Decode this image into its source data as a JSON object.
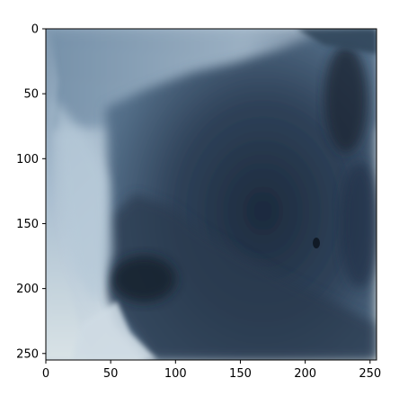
{
  "chart_data": {
    "type": "image",
    "title": "",
    "xlabel": "",
    "ylabel": "",
    "xlim": [
      0,
      255
    ],
    "ylim": [
      255,
      0
    ],
    "x_ticks": [
      0,
      50,
      100,
      150,
      200,
      250
    ],
    "y_ticks": [
      0,
      50,
      100,
      150,
      200,
      250
    ],
    "grid": false,
    "image_content": "photographic image of dark blue-grey clouds against a pale sky"
  },
  "colors": {
    "sky_light": "#dce6ec",
    "sky_mid": "#9fb6c9",
    "cloud_dark": "#1e2c40",
    "cloud_mid": "#3a4d63",
    "axis": "#000000"
  }
}
